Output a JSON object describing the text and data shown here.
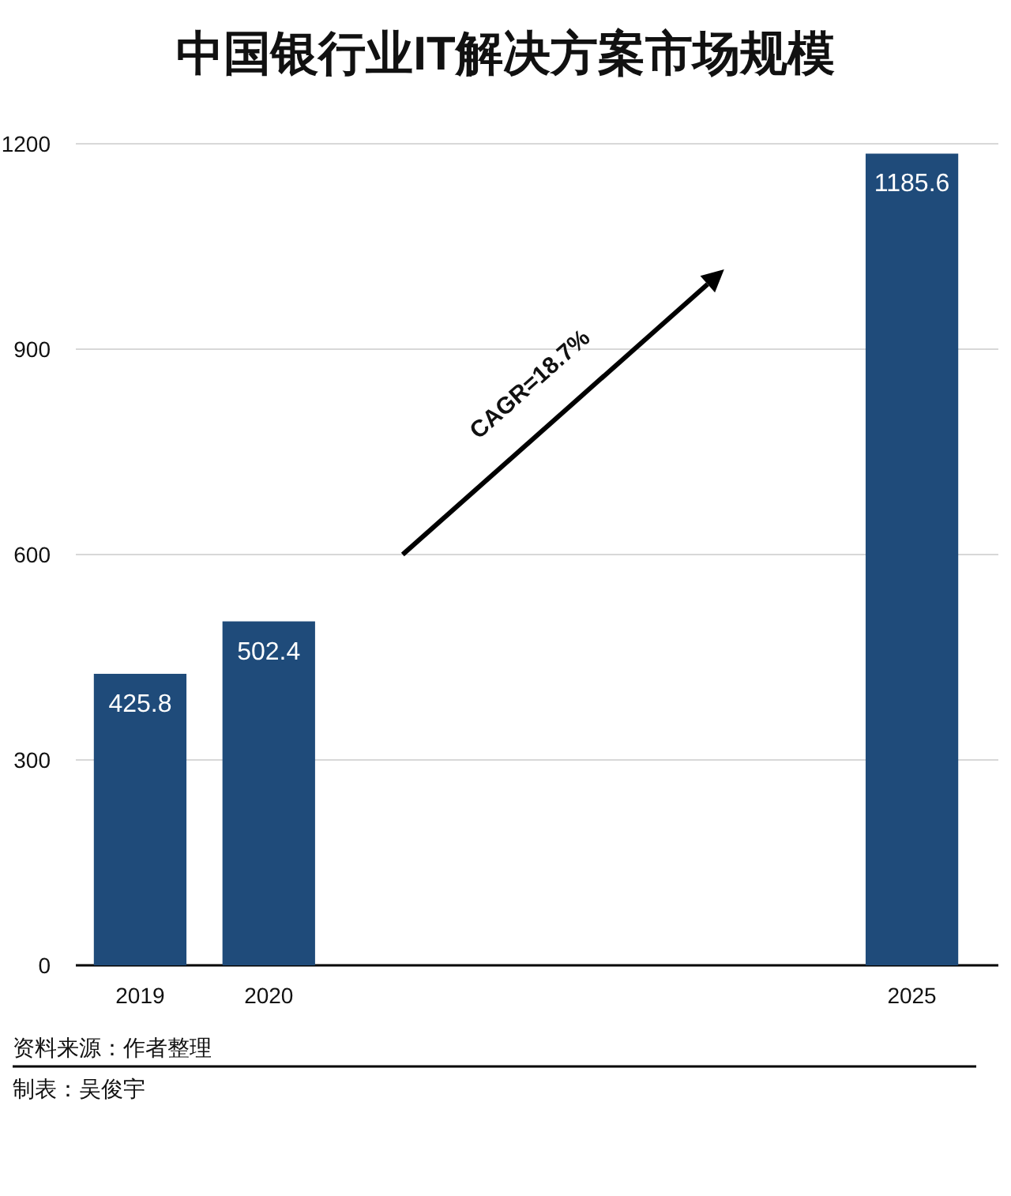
{
  "chart_data": {
    "type": "bar",
    "title": "中国银行业IT解决方案市场规模",
    "categories": [
      "2019",
      "2020",
      null,
      null,
      null,
      null,
      "2025"
    ],
    "values": [
      425.8,
      502.4,
      null,
      null,
      null,
      null,
      1185.6
    ],
    "color": "#1f4b7a",
    "ylim": [
      0,
      1200
    ],
    "yticks": [
      0,
      300,
      600,
      900,
      1200
    ],
    "grid": "y",
    "data_labels": true,
    "annotations": [
      "CAGR=18.7%",
      "资料来源：作者整理",
      "制表：吴俊宇"
    ]
  }
}
